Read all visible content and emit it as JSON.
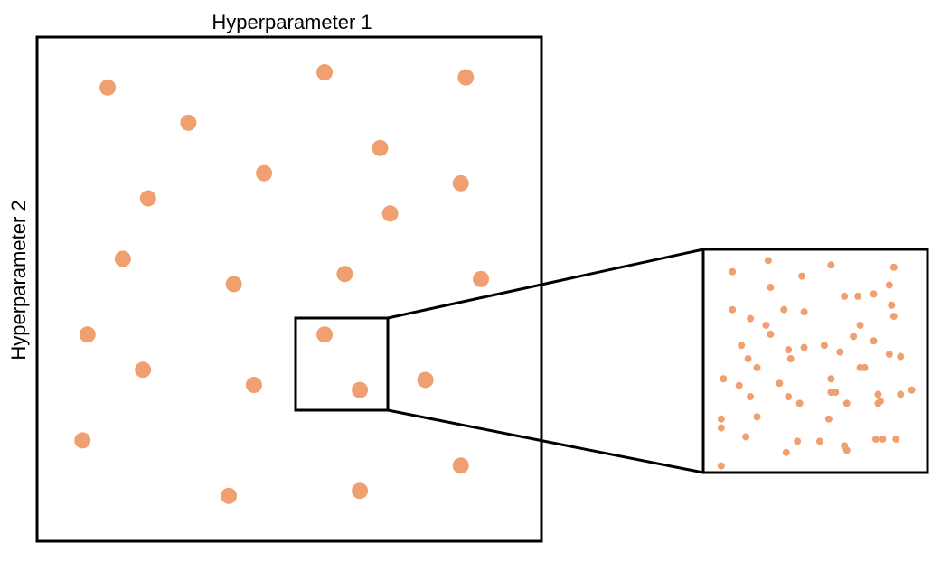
{
  "labels": {
    "x_axis": "Hyperparameter 1",
    "y_axis": "Hyperparameter 2"
  },
  "colors": {
    "point": "#f0a070",
    "stroke": "#000000",
    "background": "#ffffff"
  },
  "chart_data": [
    {
      "type": "scatter",
      "xlabel": "Hyperparameter 1",
      "ylabel": "Hyperparameter 2",
      "points": [
        [
          0.14,
          0.9
        ],
        [
          0.3,
          0.83
        ],
        [
          0.57,
          0.93
        ],
        [
          0.85,
          0.92
        ],
        [
          0.68,
          0.78
        ],
        [
          0.45,
          0.73
        ],
        [
          0.22,
          0.68
        ],
        [
          0.84,
          0.71
        ],
        [
          0.7,
          0.65
        ],
        [
          0.17,
          0.56
        ],
        [
          0.39,
          0.51
        ],
        [
          0.61,
          0.53
        ],
        [
          0.88,
          0.52
        ],
        [
          0.1,
          0.41
        ],
        [
          0.57,
          0.41
        ],
        [
          0.21,
          0.34
        ],
        [
          0.43,
          0.31
        ],
        [
          0.64,
          0.3
        ],
        [
          0.77,
          0.32
        ],
        [
          0.09,
          0.2
        ],
        [
          0.84,
          0.15
        ],
        [
          0.38,
          0.09
        ],
        [
          0.64,
          0.1
        ]
      ]
    },
    {
      "type": "scatter",
      "points": [
        [
          0.13,
          0.9
        ],
        [
          0.29,
          0.95
        ],
        [
          0.44,
          0.88
        ],
        [
          0.57,
          0.93
        ],
        [
          0.85,
          0.92
        ],
        [
          0.3,
          0.83
        ],
        [
          0.63,
          0.79
        ],
        [
          0.69,
          0.79
        ],
        [
          0.76,
          0.8
        ],
        [
          0.83,
          0.84
        ],
        [
          0.13,
          0.73
        ],
        [
          0.21,
          0.69
        ],
        [
          0.36,
          0.73
        ],
        [
          0.45,
          0.72
        ],
        [
          0.84,
          0.75
        ],
        [
          0.85,
          0.7
        ],
        [
          0.28,
          0.66
        ],
        [
          0.3,
          0.62
        ],
        [
          0.7,
          0.66
        ],
        [
          0.67,
          0.61
        ],
        [
          0.17,
          0.57
        ],
        [
          0.38,
          0.55
        ],
        [
          0.45,
          0.56
        ],
        [
          0.54,
          0.57
        ],
        [
          0.61,
          0.54
        ],
        [
          0.76,
          0.59
        ],
        [
          0.83,
          0.53
        ],
        [
          0.88,
          0.52
        ],
        [
          0.2,
          0.51
        ],
        [
          0.24,
          0.47
        ],
        [
          0.39,
          0.51
        ],
        [
          0.7,
          0.47
        ],
        [
          0.72,
          0.47
        ],
        [
          0.09,
          0.42
        ],
        [
          0.16,
          0.39
        ],
        [
          0.34,
          0.4
        ],
        [
          0.57,
          0.42
        ],
        [
          0.21,
          0.34
        ],
        [
          0.38,
          0.34
        ],
        [
          0.43,
          0.31
        ],
        [
          0.57,
          0.36
        ],
        [
          0.59,
          0.36
        ],
        [
          0.64,
          0.31
        ],
        [
          0.78,
          0.35
        ],
        [
          0.79,
          0.32
        ],
        [
          0.88,
          0.35
        ],
        [
          0.93,
          0.37
        ],
        [
          0.08,
          0.24
        ],
        [
          0.08,
          0.2
        ],
        [
          0.24,
          0.25
        ],
        [
          0.56,
          0.24
        ],
        [
          0.78,
          0.31
        ],
        [
          0.19,
          0.16
        ],
        [
          0.42,
          0.14
        ],
        [
          0.52,
          0.14
        ],
        [
          0.63,
          0.12
        ],
        [
          0.64,
          0.1
        ],
        [
          0.77,
          0.15
        ],
        [
          0.8,
          0.15
        ],
        [
          0.86,
          0.15
        ],
        [
          0.37,
          0.09
        ],
        [
          0.08,
          0.03
        ]
      ]
    }
  ]
}
